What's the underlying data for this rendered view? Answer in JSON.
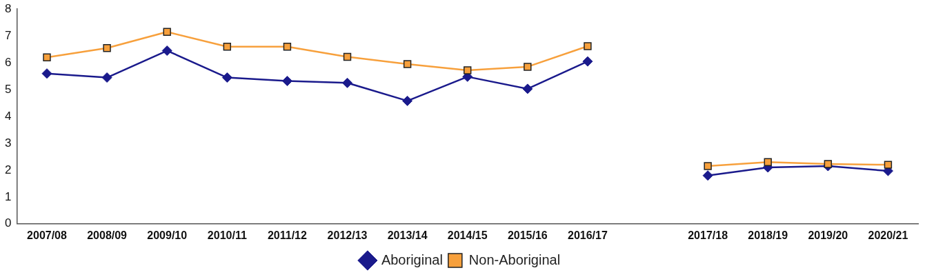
{
  "chart_data": {
    "type": "line",
    "categories": [
      "2007/08",
      "2008/09",
      "2009/10",
      "2010/11",
      "2011/12",
      "2012/13",
      "2013/14",
      "2014/15",
      "2015/16",
      "2016/17",
      null,
      "2017/18",
      "2018/19",
      "2019/20",
      "2020/21"
    ],
    "series": [
      {
        "name": "Aboriginal",
        "color": "#1a1a8c",
        "marker": "diamond",
        "values": [
          5.6,
          5.45,
          6.45,
          5.45,
          5.32,
          5.25,
          4.58,
          5.48,
          5.03,
          6.05,
          null,
          1.8,
          2.1,
          2.15,
          1.97
        ]
      },
      {
        "name": "Non-Aboriginal",
        "color": "#f7a03c",
        "marker": "square",
        "values": [
          6.2,
          6.55,
          7.15,
          6.6,
          6.6,
          6.22,
          5.95,
          5.72,
          5.85,
          6.62,
          null,
          2.15,
          2.3,
          2.23,
          2.2
        ]
      }
    ],
    "ylim": [
      0,
      8
    ],
    "yticks": [
      0,
      1,
      2,
      3,
      4,
      5,
      6,
      7,
      8
    ],
    "grid": false,
    "legend": "bottom"
  }
}
